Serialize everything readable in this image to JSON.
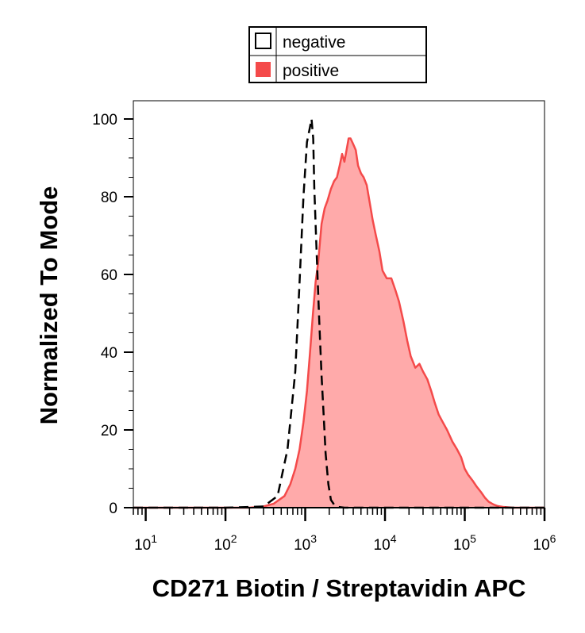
{
  "chart_data": {
    "type": "area",
    "title": "",
    "xlabel": "CD271 Biotin / Streptavidin APC",
    "ylabel": "Normalized To Mode",
    "x_scale": "log",
    "xlim": [
      7,
      1000000
    ],
    "ylim": [
      0,
      100
    ],
    "x_tick_labels": [
      {
        "value": 10,
        "base": "10",
        "exp": "1"
      },
      {
        "value": 100,
        "base": "10",
        "exp": "2"
      },
      {
        "value": 1000,
        "base": "10",
        "exp": "3"
      },
      {
        "value": 10000,
        "base": "10",
        "exp": "4"
      },
      {
        "value": 100000,
        "base": "10",
        "exp": "5"
      },
      {
        "value": 1000000,
        "base": "10",
        "exp": "6"
      }
    ],
    "y_ticks": [
      0,
      20,
      40,
      60,
      80,
      100
    ],
    "y_tick_labels": [
      "0",
      "20",
      "40",
      "60",
      "80",
      "100"
    ],
    "legend": {
      "position": "top-center",
      "entries": [
        {
          "name": "negative",
          "style": "dashed-outline",
          "color": "#000000"
        },
        {
          "name": "positive",
          "style": "filled",
          "color": "#f44a4a"
        }
      ]
    },
    "series": [
      {
        "name": "negative",
        "color": "#000000",
        "style": "dashed",
        "x": [
          7,
          100,
          300,
          450,
          600,
          750,
          850,
          950,
          1050,
          1150,
          1200,
          1260,
          1300,
          1400,
          1500,
          1600,
          1700,
          1800,
          1950,
          2100,
          2300,
          2600,
          3100,
          1000000
        ],
        "y": [
          0,
          0,
          0.3,
          3,
          15,
          35,
          58,
          80,
          94,
          98,
          100,
          95,
          82,
          64,
          48,
          34,
          24,
          14,
          6,
          2,
          0.8,
          0.2,
          0,
          0
        ]
      },
      {
        "name": "positive",
        "color": "#f44a4a",
        "fill": "#ffaaaa",
        "style": "filled",
        "x": [
          7,
          200,
          300,
          400,
          550,
          650,
          750,
          850,
          950,
          1050,
          1150,
          1250,
          1350,
          1450,
          1600,
          1750,
          1900,
          2100,
          2300,
          2500,
          2700,
          2900,
          3100,
          3300,
          3500,
          3700,
          3900,
          4100,
          4300,
          4600,
          5000,
          5400,
          5900,
          6500,
          7000,
          7700,
          8500,
          9300,
          10500,
          12000,
          13500,
          15000,
          17000,
          19000,
          21000,
          24000,
          27000,
          30000,
          34000,
          38000,
          42000,
          47000,
          53000,
          60000,
          70000,
          80000,
          90000,
          100000,
          110000,
          125000,
          140000,
          160000,
          180000,
          200000,
          230000,
          260000,
          300000,
          400000,
          1000000
        ],
        "y": [
          0,
          0,
          0.3,
          1,
          3,
          6,
          10,
          15,
          22,
          30,
          40,
          50,
          58,
          63,
          73,
          77,
          79,
          82,
          84,
          85,
          88,
          91,
          89,
          92,
          95,
          95,
          94,
          93,
          92,
          88,
          86,
          85,
          83,
          78,
          74,
          70,
          66,
          61,
          59,
          59,
          56,
          53,
          48,
          43,
          39,
          36,
          37,
          35,
          33,
          30,
          27,
          24,
          22,
          20,
          17,
          15,
          13,
          10,
          8.5,
          7,
          5.5,
          4,
          2.5,
          1.5,
          0.8,
          0.4,
          0.2,
          0,
          0
        ]
      }
    ],
    "grid": false
  }
}
